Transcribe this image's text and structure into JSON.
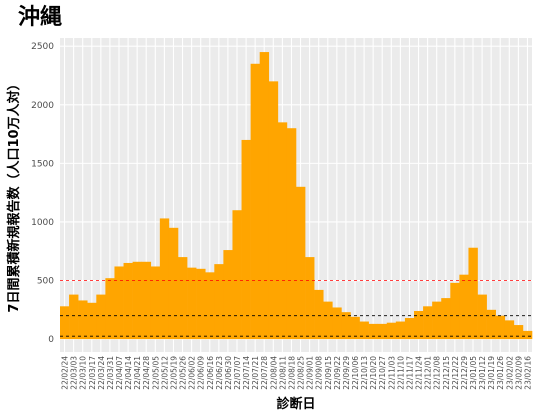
{
  "chart_data": {
    "type": "bar",
    "title": "沖縄",
    "ylabel": "7日間累積新規報告数（人口10万人対）",
    "xlabel": "診断日",
    "categories": [
      "22/02/24",
      "22/03/03",
      "22/03/10",
      "22/03/17",
      "22/03/24",
      "22/03/31",
      "22/04/07",
      "22/04/14",
      "22/04/21",
      "22/04/28",
      "22/05/05",
      "22/05/12",
      "22/05/19",
      "22/05/26",
      "22/06/02",
      "22/06/09",
      "22/06/16",
      "22/06/23",
      "22/06/30",
      "22/07/07",
      "22/07/14",
      "22/07/21",
      "22/07/28",
      "22/08/04",
      "22/08/11",
      "22/08/18",
      "22/08/25",
      "22/09/01",
      "22/09/08",
      "22/09/15",
      "22/09/22",
      "22/09/29",
      "22/10/06",
      "22/10/13",
      "22/10/20",
      "22/10/27",
      "22/11/03",
      "22/11/10",
      "22/11/17",
      "22/11/24",
      "22/12/01",
      "22/12/08",
      "22/12/15",
      "22/12/22",
      "22/12/29",
      "23/01/05",
      "23/01/12",
      "23/01/19",
      "23/01/26",
      "23/02/02",
      "23/02/09",
      "23/02/16"
    ],
    "values": [
      280,
      380,
      330,
      310,
      380,
      520,
      620,
      650,
      660,
      660,
      620,
      1030,
      950,
      700,
      610,
      600,
      570,
      640,
      760,
      1100,
      1700,
      2350,
      2450,
      2200,
      1850,
      1800,
      1300,
      700,
      420,
      320,
      270,
      230,
      190,
      150,
      130,
      130,
      140,
      150,
      180,
      240,
      280,
      320,
      350,
      480,
      550,
      780,
      380,
      250,
      200,
      160,
      120,
      70
    ],
    "color": "#ffa500",
    "ylim": [
      -110,
      2570
    ],
    "yticks": [
      0,
      500,
      1000,
      1500,
      2000,
      2500
    ],
    "grid": true,
    "hlines": [
      {
        "value": 500,
        "color": "#ff0000"
      },
      {
        "value": 200,
        "color": "#000000"
      },
      {
        "value": 25,
        "color": "#000000"
      }
    ]
  }
}
